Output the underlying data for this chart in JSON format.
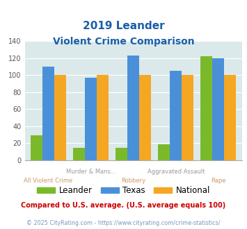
{
  "title_line1": "2019 Leander",
  "title_line2": "Violent Crime Comparison",
  "leander": [
    29,
    15,
    15,
    19,
    122
  ],
  "texas": [
    110,
    97,
    123,
    105,
    120
  ],
  "national": [
    100,
    100,
    100,
    100,
    100
  ],
  "leander_color": "#7aba2a",
  "texas_color": "#4a90d9",
  "national_color": "#f5a623",
  "ylim": [
    0,
    140
  ],
  "yticks": [
    0,
    20,
    40,
    60,
    80,
    100,
    120,
    140
  ],
  "plot_bg": "#dce9ea",
  "title_color": "#1a5fa8",
  "top_label_color": "#999999",
  "bot_label_color": "#cc9966",
  "footnote1": "Compared to U.S. average. (U.S. average equals 100)",
  "footnote2": "© 2025 CityRating.com - https://www.cityrating.com/crime-statistics/",
  "footnote1_color": "#cc0000",
  "footnote2_color": "#7799bb",
  "legend_labels": [
    "Leander",
    "Texas",
    "National"
  ],
  "top_labels": [
    "",
    "Murder & Mans...",
    "",
    "Aggravated Assault",
    ""
  ],
  "bot_labels": [
    "All Violent Crime",
    "",
    "Robbery",
    "",
    "Rape"
  ]
}
